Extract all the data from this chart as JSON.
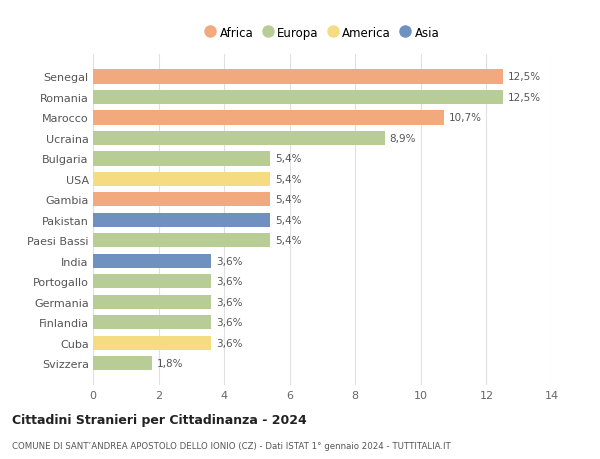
{
  "countries": [
    "Senegal",
    "Romania",
    "Marocco",
    "Ucraina",
    "Bulgaria",
    "USA",
    "Gambia",
    "Pakistan",
    "Paesi Bassi",
    "India",
    "Portogallo",
    "Germania",
    "Finlandia",
    "Cuba",
    "Svizzera"
  ],
  "values": [
    12.5,
    12.5,
    10.7,
    8.9,
    5.4,
    5.4,
    5.4,
    5.4,
    5.4,
    3.6,
    3.6,
    3.6,
    3.6,
    3.6,
    1.8
  ],
  "labels": [
    "12,5%",
    "12,5%",
    "10,7%",
    "8,9%",
    "5,4%",
    "5,4%",
    "5,4%",
    "5,4%",
    "5,4%",
    "3,6%",
    "3,6%",
    "3,6%",
    "3,6%",
    "3,6%",
    "1,8%"
  ],
  "continents": [
    "Africa",
    "Europa",
    "Africa",
    "Europa",
    "Europa",
    "America",
    "Africa",
    "Asia",
    "Europa",
    "Asia",
    "Europa",
    "Europa",
    "Europa",
    "America",
    "Europa"
  ],
  "colors": {
    "Africa": "#F2A97E",
    "Europa": "#B8CC96",
    "America": "#F5DC82",
    "Asia": "#7090C0"
  },
  "legend_order": [
    "Africa",
    "Europa",
    "America",
    "Asia"
  ],
  "xlim": [
    0,
    14
  ],
  "xticks": [
    0,
    2,
    4,
    6,
    8,
    10,
    12,
    14
  ],
  "title": "Cittadini Stranieri per Cittadinanza - 2024",
  "subtitle": "COMUNE DI SANT’ANDREA APOSTOLO DELLO IONIO (CZ) - Dati ISTAT 1° gennaio 2024 - TUTTITALIA.IT",
  "background_color": "#ffffff",
  "grid_color": "#e0e0e0",
  "bar_height": 0.7,
  "figsize": [
    6.0,
    4.6
  ],
  "dpi": 100
}
